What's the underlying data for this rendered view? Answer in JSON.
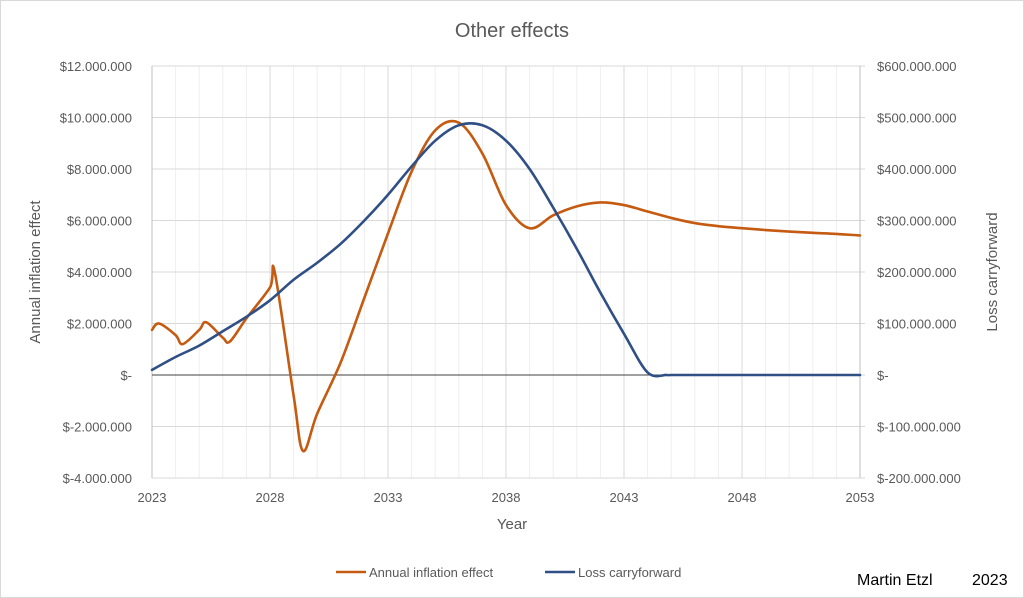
{
  "chart_data": {
    "type": "line",
    "title": "Other effects",
    "xlabel": "Year",
    "ylabel": "Annual inflation effect",
    "y2label": "Loss carryforward",
    "xlim": [
      2023,
      2053
    ],
    "x_ticks": [
      2023,
      2028,
      2033,
      2038,
      2043,
      2048,
      2053
    ],
    "x_tick_labels": [
      "2023",
      "2028",
      "2033",
      "2038",
      "2043",
      "2048",
      "2053"
    ],
    "ylim": [
      -4000000,
      12000000
    ],
    "y_ticks": [
      12000000,
      10000000,
      8000000,
      6000000,
      4000000,
      2000000,
      0,
      -2000000,
      -4000000
    ],
    "y_tick_labels": [
      "$12.000.000",
      "$10.000.000",
      "$8.000.000",
      "$6.000.000",
      "$4.000.000",
      "$2.000.000",
      "$-",
      "$-2.000.000",
      "$-4.000.000"
    ],
    "y2lim": [
      -200000000,
      600000000
    ],
    "y2_ticks": [
      600000000,
      500000000,
      400000000,
      300000000,
      200000000,
      100000000,
      0,
      -100000000,
      -200000000
    ],
    "y2_tick_labels": [
      "$600.000.000",
      "$500.000.000",
      "$400.000.000",
      "$300.000.000",
      "$200.000.000",
      "$100.000.000",
      "$-",
      "$-100.000.000",
      "$-200.000.000"
    ],
    "grid": true,
    "legend_position": "bottom",
    "series": [
      {
        "name": "Annual inflation effect",
        "axis": "left",
        "color": "#c55a11",
        "x": [
          2023,
          2023.3,
          2024,
          2024.3,
          2025,
          2025.3,
          2026,
          2026.3,
          2027,
          2028,
          2028.2,
          2029,
          2029.4,
          2030,
          2031,
          2032,
          2033,
          2034,
          2035,
          2036,
          2037,
          2038,
          2039,
          2040,
          2041,
          2042,
          2043,
          2044,
          2045,
          2046,
          2047,
          2048,
          2049,
          2050,
          2051,
          2052,
          2053
        ],
        "values": [
          1750000,
          2000000,
          1550000,
          1200000,
          1750000,
          2050000,
          1450000,
          1300000,
          2200000,
          3400000,
          4000000,
          -800000,
          -2950000,
          -1500000,
          500000,
          3000000,
          5500000,
          7900000,
          9500000,
          9800000,
          8600000,
          6600000,
          5700000,
          6200000,
          6550000,
          6700000,
          6600000,
          6350000,
          6100000,
          5900000,
          5780000,
          5700000,
          5630000,
          5570000,
          5520000,
          5480000,
          5420000
        ]
      },
      {
        "name": "Loss carryforward",
        "axis": "right",
        "color": "#2f4f85",
        "x": [
          2023,
          2024,
          2025,
          2026,
          2027,
          2028,
          2029,
          2030,
          2031,
          2032,
          2033,
          2034,
          2035,
          2036,
          2037,
          2038,
          2039,
          2040,
          2041,
          2042,
          2043,
          2044,
          2044.8,
          2045,
          2046,
          2047,
          2048,
          2049,
          2050,
          2051,
          2052,
          2053
        ],
        "values": [
          10000000,
          35000000,
          57000000,
          85000000,
          113000000,
          145000000,
          185000000,
          218000000,
          255000000,
          300000000,
          350000000,
          405000000,
          455000000,
          485000000,
          485000000,
          455000000,
          400000000,
          325000000,
          245000000,
          160000000,
          80000000,
          5000000,
          0,
          0,
          0,
          0,
          0,
          0,
          0,
          0,
          0,
          0
        ]
      }
    ]
  },
  "credit": {
    "author": "Martin Etzl",
    "year": "2023"
  }
}
